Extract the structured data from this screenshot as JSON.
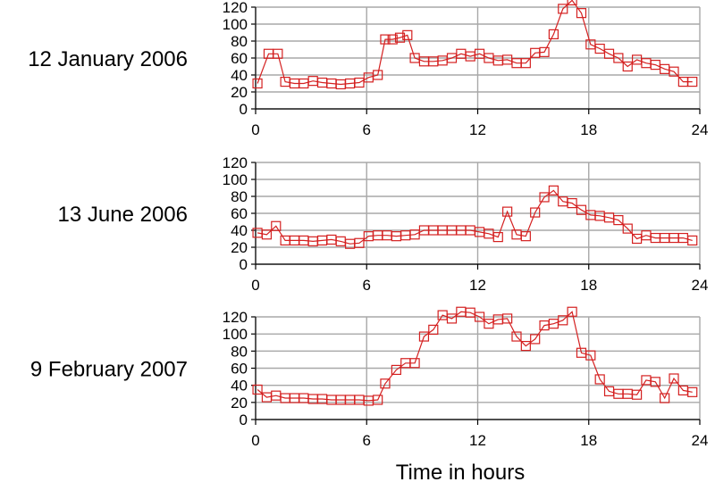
{
  "chart_data": [
    {
      "type": "line",
      "label": "12 January 2006",
      "xlim": [
        0,
        24
      ],
      "ylim": [
        0,
        120
      ],
      "xticks": [
        0,
        6,
        12,
        18,
        24
      ],
      "yticks": [
        0,
        20,
        40,
        60,
        80,
        100,
        120
      ],
      "x": [
        0.1,
        0.7,
        1.2,
        1.6,
        2.1,
        2.6,
        3.1,
        3.6,
        4.1,
        4.6,
        5.1,
        5.6,
        6.1,
        6.6,
        7.0,
        7.4,
        7.8,
        8.2,
        8.6,
        9.1,
        9.6,
        10.1,
        10.6,
        11.1,
        11.6,
        12.1,
        12.6,
        13.1,
        13.6,
        14.1,
        14.6,
        15.1,
        15.6,
        16.1,
        16.6,
        17.1,
        17.6,
        18.1,
        18.6,
        19.1,
        19.6,
        20.1,
        20.6,
        21.1,
        21.6,
        22.1,
        22.6,
        23.1,
        23.6
      ],
      "y": [
        30,
        65,
        65,
        32,
        30,
        30,
        33,
        31,
        30,
        29,
        30,
        31,
        37,
        40,
        82,
        82,
        84,
        87,
        60,
        56,
        56,
        57,
        60,
        65,
        62,
        65,
        60,
        57,
        58,
        54,
        54,
        66,
        67,
        88,
        118,
        128,
        113,
        76,
        71,
        65,
        60,
        50,
        58,
        54,
        52,
        47,
        44,
        32,
        32
      ],
      "color": "#d42020"
    },
    {
      "type": "line",
      "label": "13 June 2006",
      "xlim": [
        0,
        24
      ],
      "ylim": [
        0,
        120
      ],
      "xticks": [
        0,
        6,
        12,
        18,
        24
      ],
      "yticks": [
        0,
        20,
        40,
        60,
        80,
        100,
        120
      ],
      "x": [
        0.1,
        0.6,
        1.1,
        1.6,
        2.1,
        2.6,
        3.1,
        3.6,
        4.1,
        4.6,
        5.1,
        5.6,
        6.1,
        6.6,
        7.1,
        7.6,
        8.1,
        8.6,
        9.1,
        9.6,
        10.1,
        10.6,
        11.1,
        11.6,
        12.1,
        12.6,
        13.1,
        13.6,
        14.1,
        14.6,
        15.1,
        15.6,
        16.1,
        16.6,
        17.1,
        17.6,
        18.1,
        18.6,
        19.1,
        19.6,
        20.1,
        20.6,
        21.1,
        21.6,
        22.1,
        22.6,
        23.1,
        23.6
      ],
      "y": [
        37,
        35,
        45,
        28,
        28,
        28,
        27,
        28,
        29,
        27,
        24,
        25,
        33,
        34,
        34,
        33,
        34,
        35,
        40,
        40,
        40,
        40,
        40,
        40,
        38,
        36,
        32,
        62,
        35,
        33,
        61,
        79,
        87,
        74,
        72,
        64,
        58,
        57,
        55,
        52,
        42,
        30,
        34,
        31,
        31,
        31,
        31,
        28
      ],
      "color": "#d42020"
    },
    {
      "type": "line",
      "label": "9 February 2007",
      "xlim": [
        0,
        24
      ],
      "ylim": [
        0,
        120
      ],
      "xticks": [
        0,
        6,
        12,
        18,
        24
      ],
      "yticks": [
        0,
        20,
        40,
        60,
        80,
        100,
        120
      ],
      "x": [
        0.1,
        0.6,
        1.1,
        1.6,
        2.1,
        2.6,
        3.1,
        3.6,
        4.1,
        4.6,
        5.1,
        5.6,
        6.1,
        6.6,
        7.0,
        7.6,
        8.1,
        8.6,
        9.1,
        9.6,
        10.1,
        10.6,
        11.1,
        11.6,
        12.1,
        12.6,
        13.1,
        13.6,
        14.1,
        14.6,
        15.1,
        15.6,
        16.1,
        16.6,
        17.1,
        17.6,
        18.1,
        18.6,
        19.1,
        19.6,
        20.1,
        20.6,
        21.1,
        21.6,
        22.1,
        22.6,
        23.1,
        23.6
      ],
      "y": [
        35,
        26,
        28,
        25,
        25,
        25,
        24,
        24,
        23,
        23,
        23,
        23,
        22,
        23,
        42,
        58,
        66,
        66,
        97,
        105,
        122,
        118,
        126,
        125,
        120,
        112,
        117,
        118,
        97,
        86,
        94,
        110,
        112,
        116,
        126,
        78,
        75,
        47,
        33,
        30,
        30,
        29,
        46,
        44,
        25,
        48,
        34,
        32
      ],
      "color": "#d42020"
    }
  ],
  "xlabel": "Time in hours"
}
